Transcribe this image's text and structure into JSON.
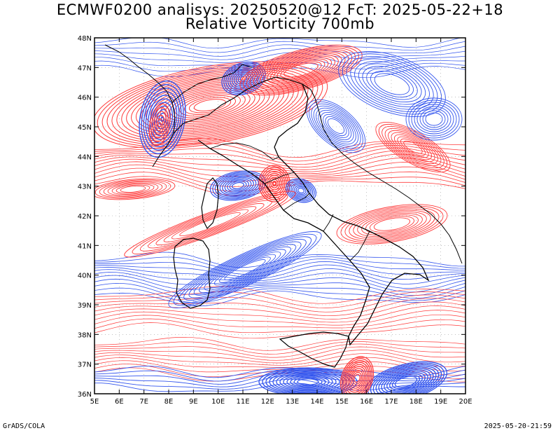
{
  "title": {
    "line1": "ECMWF0200 analisys: 20250520@12 FcT: 2025-05-22+18",
    "line2": "Relative Vorticity 700mb"
  },
  "map": {
    "lon_range": [
      5,
      20
    ],
    "lat_range": [
      36,
      48
    ],
    "lon_labels": [
      "5E",
      "6E",
      "7E",
      "8E",
      "9E",
      "10E",
      "11E",
      "12E",
      "13E",
      "14E",
      "15E",
      "16E",
      "17E",
      "18E",
      "19E",
      "20E"
    ],
    "lat_labels": [
      "36N",
      "37N",
      "38N",
      "39N",
      "40N",
      "41N",
      "42N",
      "43N",
      "44N",
      "45N",
      "46N",
      "47N",
      "48N"
    ],
    "grid": "dotted",
    "contour_colors": {
      "positive": "#ff3b3b",
      "negative": "#3355ee",
      "coast": "#000000"
    }
  },
  "footer": {
    "left": "GrADS/COLA",
    "right": "2025-05-20-21:59"
  }
}
